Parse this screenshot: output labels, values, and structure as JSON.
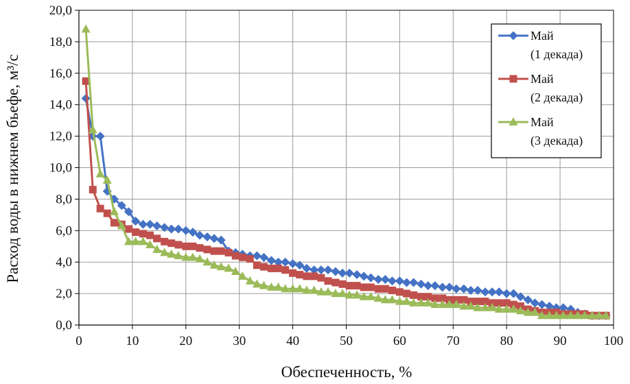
{
  "chart_data": {
    "type": "line",
    "title": "",
    "xlabel": "Обеспеченность, %",
    "ylabel": "Расход воды в нижнем бьефе, м³/с",
    "xlim": [
      0,
      100
    ],
    "ylim": [
      0,
      20
    ],
    "x_ticks": [
      0,
      10,
      20,
      30,
      40,
      50,
      60,
      70,
      80,
      90,
      100
    ],
    "y_ticks": [
      0,
      2,
      4,
      6,
      8,
      10,
      12,
      14,
      16,
      18,
      20
    ],
    "y_tick_labels": [
      "0,0",
      "2,0",
      "4,0",
      "6,0",
      "8,0",
      "10,0",
      "12,0",
      "14,0",
      "16,0",
      "18,0",
      "20,0"
    ],
    "x_tick_labels": [
      "0",
      "10",
      "20",
      "30",
      "40",
      "50",
      "60",
      "70",
      "80",
      "90",
      "100"
    ],
    "grid": true,
    "legend_position": "top-right",
    "series": [
      {
        "name": "Май (1 декада)",
        "legend_line1": "Май",
        "legend_line2": "(1 декада)",
        "color": "#4472C4",
        "marker": "diamond",
        "points": [
          [
            1.3,
            14.4
          ],
          [
            2.6,
            12.0
          ],
          [
            4.0,
            12.0
          ],
          [
            5.3,
            8.5
          ],
          [
            6.6,
            8.0
          ],
          [
            8.0,
            7.6
          ],
          [
            9.3,
            7.2
          ],
          [
            10.6,
            6.6
          ],
          [
            12.0,
            6.4
          ],
          [
            13.3,
            6.4
          ],
          [
            14.6,
            6.3
          ],
          [
            16.0,
            6.2
          ],
          [
            17.3,
            6.1
          ],
          [
            18.6,
            6.1
          ],
          [
            20.0,
            6.0
          ],
          [
            21.3,
            5.9
          ],
          [
            22.6,
            5.7
          ],
          [
            24.0,
            5.6
          ],
          [
            25.3,
            5.5
          ],
          [
            26.6,
            5.4
          ],
          [
            28.0,
            4.7
          ],
          [
            29.3,
            4.6
          ],
          [
            30.6,
            4.5
          ],
          [
            32.0,
            4.4
          ],
          [
            33.3,
            4.4
          ],
          [
            34.6,
            4.3
          ],
          [
            36.0,
            4.1
          ],
          [
            37.3,
            4.0
          ],
          [
            38.6,
            4.0
          ],
          [
            40.0,
            3.9
          ],
          [
            41.3,
            3.8
          ],
          [
            42.6,
            3.6
          ],
          [
            44.0,
            3.5
          ],
          [
            45.3,
            3.5
          ],
          [
            46.6,
            3.5
          ],
          [
            48.0,
            3.4
          ],
          [
            49.3,
            3.3
          ],
          [
            50.6,
            3.3
          ],
          [
            52.0,
            3.2
          ],
          [
            53.3,
            3.1
          ],
          [
            54.6,
            3.0
          ],
          [
            56.0,
            2.9
          ],
          [
            57.3,
            2.9
          ],
          [
            58.6,
            2.8
          ],
          [
            60.0,
            2.8
          ],
          [
            61.3,
            2.7
          ],
          [
            62.6,
            2.7
          ],
          [
            64.0,
            2.6
          ],
          [
            65.3,
            2.5
          ],
          [
            66.6,
            2.5
          ],
          [
            68.0,
            2.4
          ],
          [
            69.3,
            2.4
          ],
          [
            70.6,
            2.3
          ],
          [
            72.0,
            2.3
          ],
          [
            73.3,
            2.2
          ],
          [
            74.6,
            2.2
          ],
          [
            76.0,
            2.1
          ],
          [
            77.3,
            2.1
          ],
          [
            78.6,
            2.1
          ],
          [
            80.0,
            2.0
          ],
          [
            81.3,
            2.0
          ],
          [
            82.6,
            1.8
          ],
          [
            84.0,
            1.6
          ],
          [
            85.3,
            1.4
          ],
          [
            86.6,
            1.3
          ],
          [
            88.0,
            1.2
          ],
          [
            89.3,
            1.1
          ],
          [
            90.6,
            1.1
          ],
          [
            92.0,
            1.0
          ],
          [
            93.3,
            0.8
          ],
          [
            94.6,
            0.7
          ],
          [
            96.0,
            0.6
          ],
          [
            97.3,
            0.6
          ],
          [
            98.6,
            0.6
          ]
        ]
      },
      {
        "name": "Май (2 декада)",
        "legend_line1": "Май",
        "legend_line2": "(2 декада)",
        "color": "#C0504D",
        "marker": "square",
        "points": [
          [
            1.3,
            15.5
          ],
          [
            2.6,
            8.6
          ],
          [
            4.0,
            7.4
          ],
          [
            5.3,
            7.1
          ],
          [
            6.6,
            6.5
          ],
          [
            8.0,
            6.4
          ],
          [
            9.3,
            6.1
          ],
          [
            10.6,
            5.9
          ],
          [
            12.0,
            5.8
          ],
          [
            13.3,
            5.7
          ],
          [
            14.6,
            5.5
          ],
          [
            16.0,
            5.3
          ],
          [
            17.3,
            5.2
          ],
          [
            18.6,
            5.1
          ],
          [
            20.0,
            5.0
          ],
          [
            21.3,
            5.0
          ],
          [
            22.6,
            4.9
          ],
          [
            24.0,
            4.8
          ],
          [
            25.3,
            4.7
          ],
          [
            26.6,
            4.7
          ],
          [
            28.0,
            4.6
          ],
          [
            29.3,
            4.4
          ],
          [
            30.6,
            4.3
          ],
          [
            32.0,
            4.2
          ],
          [
            33.3,
            3.8
          ],
          [
            34.6,
            3.7
          ],
          [
            36.0,
            3.6
          ],
          [
            37.3,
            3.6
          ],
          [
            38.6,
            3.5
          ],
          [
            40.0,
            3.3
          ],
          [
            41.3,
            3.2
          ],
          [
            42.6,
            3.1
          ],
          [
            44.0,
            3.1
          ],
          [
            45.3,
            3.0
          ],
          [
            46.6,
            2.8
          ],
          [
            48.0,
            2.7
          ],
          [
            49.3,
            2.6
          ],
          [
            50.6,
            2.5
          ],
          [
            52.0,
            2.5
          ],
          [
            53.3,
            2.4
          ],
          [
            54.6,
            2.4
          ],
          [
            56.0,
            2.3
          ],
          [
            57.3,
            2.3
          ],
          [
            58.6,
            2.2
          ],
          [
            60.0,
            2.1
          ],
          [
            61.3,
            2.0
          ],
          [
            62.6,
            1.9
          ],
          [
            64.0,
            1.8
          ],
          [
            65.3,
            1.8
          ],
          [
            66.6,
            1.7
          ],
          [
            68.0,
            1.7
          ],
          [
            69.3,
            1.6
          ],
          [
            70.6,
            1.6
          ],
          [
            72.0,
            1.6
          ],
          [
            73.3,
            1.5
          ],
          [
            74.6,
            1.5
          ],
          [
            76.0,
            1.5
          ],
          [
            77.3,
            1.4
          ],
          [
            78.6,
            1.4
          ],
          [
            80.0,
            1.4
          ],
          [
            81.3,
            1.3
          ],
          [
            82.6,
            1.2
          ],
          [
            84.0,
            1.0
          ],
          [
            85.3,
            0.9
          ],
          [
            86.6,
            0.8
          ],
          [
            88.0,
            0.8
          ],
          [
            89.3,
            0.8
          ],
          [
            90.6,
            0.7
          ],
          [
            92.0,
            0.7
          ],
          [
            93.3,
            0.7
          ],
          [
            94.6,
            0.7
          ],
          [
            96.0,
            0.6
          ],
          [
            97.3,
            0.6
          ],
          [
            98.6,
            0.6
          ]
        ]
      },
      {
        "name": "Май (3 декада)",
        "legend_line1": "Май",
        "legend_line2": "(3 декада)",
        "color": "#9BBB59",
        "marker": "triangle",
        "points": [
          [
            1.3,
            18.8
          ],
          [
            2.6,
            12.4
          ],
          [
            4.0,
            9.6
          ],
          [
            5.3,
            9.2
          ],
          [
            6.6,
            7.2
          ],
          [
            8.0,
            6.3
          ],
          [
            9.3,
            5.3
          ],
          [
            10.6,
            5.3
          ],
          [
            12.0,
            5.3
          ],
          [
            13.3,
            5.1
          ],
          [
            14.6,
            4.8
          ],
          [
            16.0,
            4.6
          ],
          [
            17.3,
            4.5
          ],
          [
            18.6,
            4.4
          ],
          [
            20.0,
            4.3
          ],
          [
            21.3,
            4.3
          ],
          [
            22.6,
            4.2
          ],
          [
            24.0,
            4.0
          ],
          [
            25.3,
            3.8
          ],
          [
            26.6,
            3.7
          ],
          [
            28.0,
            3.6
          ],
          [
            29.3,
            3.4
          ],
          [
            30.6,
            3.1
          ],
          [
            32.0,
            2.8
          ],
          [
            33.3,
            2.6
          ],
          [
            34.6,
            2.5
          ],
          [
            36.0,
            2.4
          ],
          [
            37.3,
            2.4
          ],
          [
            38.6,
            2.3
          ],
          [
            40.0,
            2.3
          ],
          [
            41.3,
            2.3
          ],
          [
            42.6,
            2.2
          ],
          [
            44.0,
            2.2
          ],
          [
            45.3,
            2.1
          ],
          [
            46.6,
            2.1
          ],
          [
            48.0,
            2.0
          ],
          [
            49.3,
            2.0
          ],
          [
            50.6,
            1.9
          ],
          [
            52.0,
            1.9
          ],
          [
            53.3,
            1.8
          ],
          [
            54.6,
            1.8
          ],
          [
            56.0,
            1.7
          ],
          [
            57.3,
            1.6
          ],
          [
            58.6,
            1.6
          ],
          [
            60.0,
            1.5
          ],
          [
            61.3,
            1.5
          ],
          [
            62.6,
            1.4
          ],
          [
            64.0,
            1.4
          ],
          [
            65.3,
            1.4
          ],
          [
            66.6,
            1.3
          ],
          [
            68.0,
            1.3
          ],
          [
            69.3,
            1.3
          ],
          [
            70.6,
            1.3
          ],
          [
            72.0,
            1.2
          ],
          [
            73.3,
            1.2
          ],
          [
            74.6,
            1.1
          ],
          [
            76.0,
            1.1
          ],
          [
            77.3,
            1.1
          ],
          [
            78.6,
            1.0
          ],
          [
            80.0,
            1.0
          ],
          [
            81.3,
            1.0
          ],
          [
            82.6,
            0.9
          ],
          [
            84.0,
            0.8
          ],
          [
            85.3,
            0.8
          ],
          [
            86.6,
            0.6
          ],
          [
            88.0,
            0.6
          ],
          [
            89.3,
            0.6
          ],
          [
            90.6,
            0.6
          ],
          [
            92.0,
            0.6
          ],
          [
            93.3,
            0.6
          ],
          [
            94.6,
            0.6
          ],
          [
            96.0,
            0.6
          ],
          [
            97.3,
            0.6
          ],
          [
            98.6,
            0.6
          ]
        ]
      }
    ]
  }
}
